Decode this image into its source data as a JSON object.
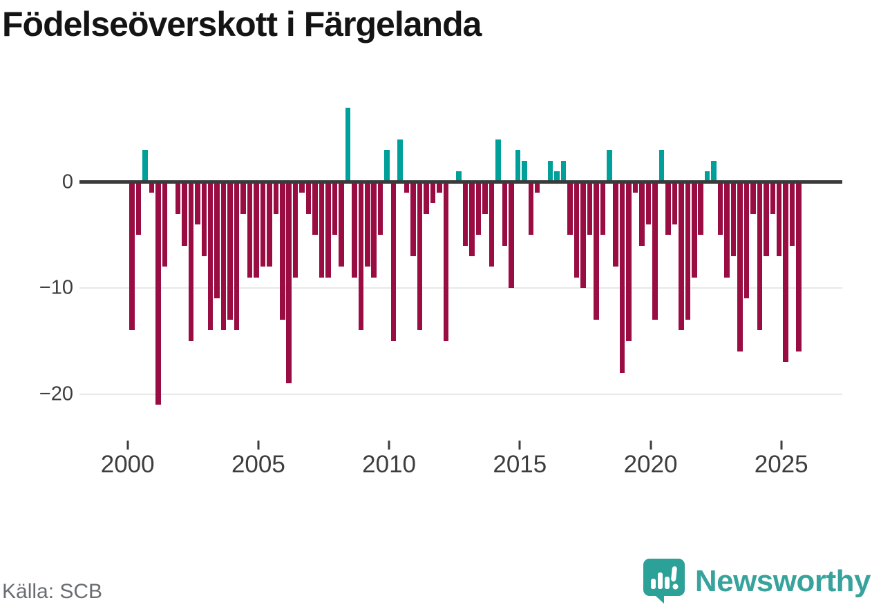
{
  "title": "Födelseöverskott i Färgelanda",
  "source": {
    "label": "Källa: SCB"
  },
  "branding": {
    "name": "Newsworthy"
  },
  "colors": {
    "negative_bar": "#9a0d42",
    "positive_bar": "#00a09a",
    "brand_teal": "#38a39c",
    "zero_line": "#3a3a3a",
    "gridline": "#e8e8e8",
    "tick_label": "#3d3d3d",
    "source_text": "#696d71",
    "title_text": "#141414"
  },
  "y_axis": {
    "tick_labels": [
      "0",
      "−10",
      "−20"
    ],
    "tick_values": [
      0,
      -10,
      -20
    ]
  },
  "x_axis": {
    "tick_labels": [
      "2000",
      "2005",
      "2010",
      "2015",
      "2020",
      "2025"
    ],
    "tick_years": [
      2000,
      2005,
      2010,
      2015,
      2020,
      2025
    ]
  },
  "chart_data": {
    "type": "bar",
    "title": "Födelseöverskott i Färgelanda",
    "xlabel": "",
    "ylabel": "",
    "ylim": [
      -22,
      8
    ],
    "grid": true,
    "legend": "none",
    "x": [
      "2000 Q1",
      "2000 Q2",
      "2000 Q3",
      "2000 Q4",
      "2001 Q1",
      "2001 Q2",
      "2001 Q3",
      "2001 Q4",
      "2002 Q1",
      "2002 Q2",
      "2002 Q3",
      "2002 Q4",
      "2003 Q1",
      "2003 Q2",
      "2003 Q3",
      "2003 Q4",
      "2004 Q1",
      "2004 Q2",
      "2004 Q3",
      "2004 Q4",
      "2005 Q1",
      "2005 Q2",
      "2005 Q3",
      "2005 Q4",
      "2006 Q1",
      "2006 Q2",
      "2006 Q3",
      "2006 Q4",
      "2007 Q1",
      "2007 Q2",
      "2007 Q3",
      "2007 Q4",
      "2008 Q1",
      "2008 Q2",
      "2008 Q3",
      "2008 Q4",
      "2009 Q1",
      "2009 Q2",
      "2009 Q3",
      "2009 Q4",
      "2010 Q1",
      "2010 Q2",
      "2010 Q3",
      "2010 Q4",
      "2011 Q1",
      "2011 Q2",
      "2011 Q3",
      "2011 Q4",
      "2012 Q1",
      "2012 Q2",
      "2012 Q3",
      "2012 Q4",
      "2013 Q1",
      "2013 Q2",
      "2013 Q3",
      "2013 Q4",
      "2014 Q1",
      "2014 Q2",
      "2014 Q3",
      "2014 Q4",
      "2015 Q1",
      "2015 Q2",
      "2015 Q3",
      "2015 Q4",
      "2016 Q1",
      "2016 Q2",
      "2016 Q3",
      "2016 Q4",
      "2017 Q1",
      "2017 Q2",
      "2017 Q3",
      "2017 Q4",
      "2018 Q1",
      "2018 Q2",
      "2018 Q3",
      "2018 Q4",
      "2019 Q1",
      "2019 Q2",
      "2019 Q3",
      "2019 Q4",
      "2020 Q1",
      "2020 Q2",
      "2020 Q3",
      "2020 Q4",
      "2021 Q1",
      "2021 Q2",
      "2021 Q3",
      "2021 Q4",
      "2022 Q1",
      "2022 Q2",
      "2022 Q3",
      "2022 Q4",
      "2023 Q1",
      "2023 Q2",
      "2023 Q3",
      "2023 Q4",
      "2024 Q1",
      "2024 Q2",
      "2024 Q3",
      "2024 Q4",
      "2025 Q1",
      "2025 Q2",
      "2025 Q3"
    ],
    "values": [
      -14,
      -5,
      3,
      -1,
      -21,
      -8,
      0,
      -3,
      -6,
      -15,
      -4,
      -7,
      -14,
      -11,
      -14,
      -13,
      -14,
      -3,
      -9,
      -9,
      -8,
      -8,
      -3,
      -13,
      -19,
      -9,
      -1,
      -3,
      -5,
      -9,
      -9,
      -5,
      -8,
      7,
      -9,
      -14,
      -8,
      -9,
      -5,
      3,
      -15,
      4,
      -1,
      -7,
      -14,
      -3,
      -2,
      -1,
      -15,
      0,
      1,
      -6,
      -7,
      -5,
      -3,
      -8,
      4,
      -6,
      -10,
      3,
      2,
      -5,
      -1,
      0,
      2,
      1,
      2,
      -5,
      -9,
      -10,
      -5,
      -13,
      -5,
      3,
      -8,
      -18,
      -15,
      -1,
      -6,
      -4,
      -13,
      3,
      -5,
      -4,
      -14,
      -13,
      -9,
      -5,
      1,
      2,
      -5,
      -9,
      -7,
      -16,
      -11,
      -3,
      -14,
      -7,
      -3,
      -7,
      -17,
      -6,
      -16
    ]
  }
}
